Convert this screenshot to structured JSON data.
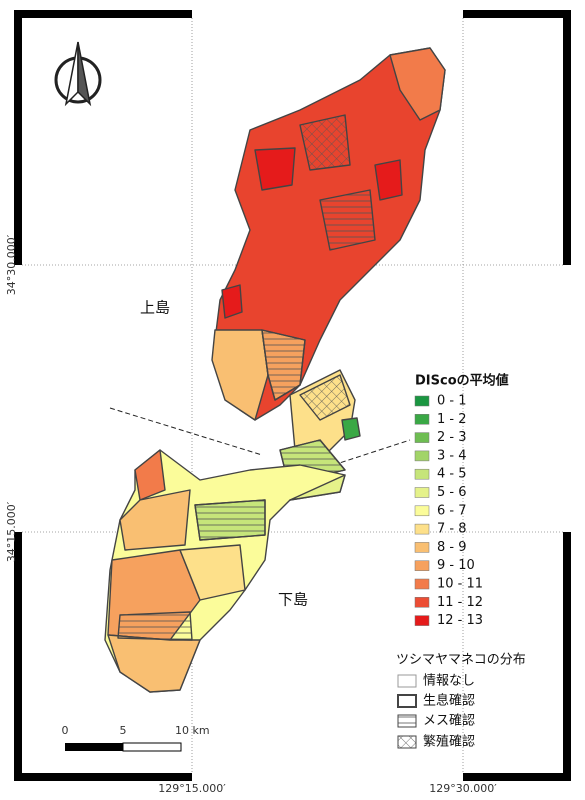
{
  "map": {
    "region_labels": [
      "上島",
      "下島"
    ],
    "grid_labels": {
      "left": [
        "34°30.000′",
        "34°15.000′"
      ],
      "bottom": [
        "129°15.000′",
        "129°30.000′"
      ]
    },
    "legend_disco": {
      "title": "DIScoの平均値",
      "items": [
        {
          "label": "0 - 1",
          "color": "#1a9641"
        },
        {
          "label": "1 - 2",
          "color": "#3aa845"
        },
        {
          "label": "2 - 3",
          "color": "#6ebd52"
        },
        {
          "label": "3 - 4",
          "color": "#a2d468"
        },
        {
          "label": "4 - 5",
          "color": "#c6e57a"
        },
        {
          "label": "5 - 6",
          "color": "#e5f28a"
        },
        {
          "label": "6 - 7",
          "color": "#fbfc9a"
        },
        {
          "label": "7 - 8",
          "color": "#fde08a"
        },
        {
          "label": "8 - 9",
          "color": "#f9bf72"
        },
        {
          "label": "9 - 10",
          "color": "#f6a15e"
        },
        {
          "label": "10 - 11",
          "color": "#f27b4a"
        },
        {
          "label": "11 - 12",
          "color": "#ec4d34"
        },
        {
          "label": "12 - 13",
          "color": "#e51b1b"
        }
      ]
    },
    "legend_distribution": {
      "title": "ツシマヤマネコの分布",
      "items": [
        "情報なし",
        "生息確認",
        "メス確認",
        "繁殖確認"
      ]
    },
    "scale_labels": [
      "0",
      "5",
      "10 km"
    ]
  }
}
